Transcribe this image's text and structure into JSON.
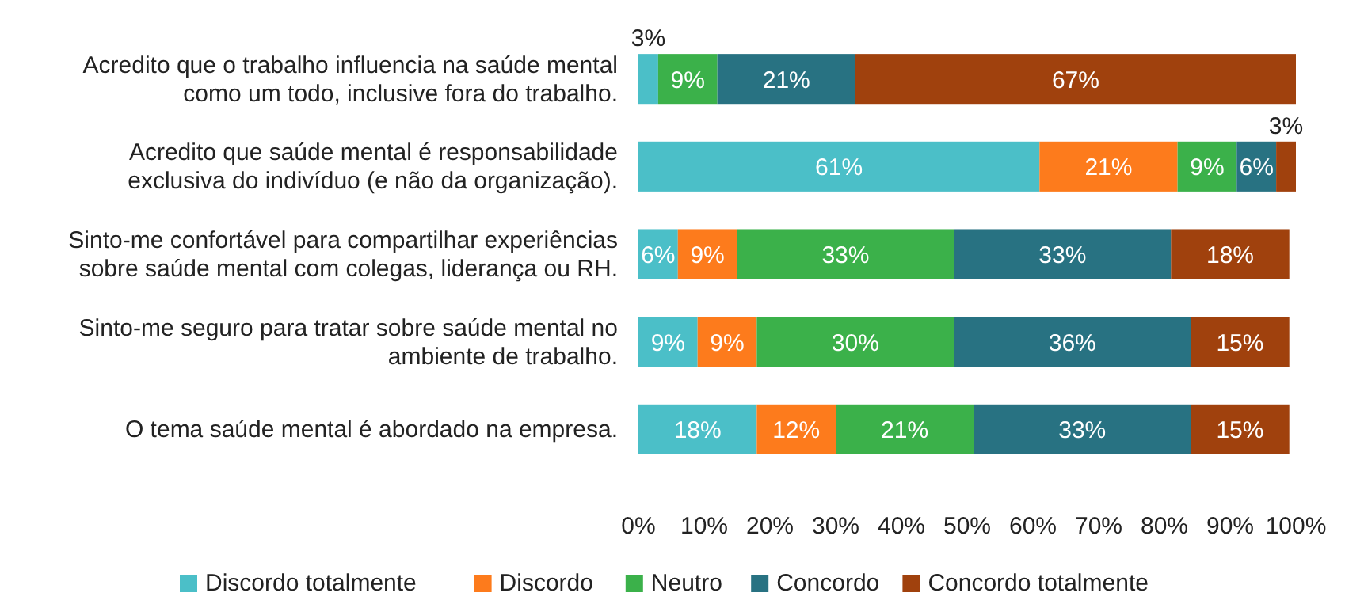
{
  "chart_data": {
    "type": "bar",
    "orientation": "horizontal",
    "stacked": true,
    "legend": "bottom",
    "categories": [
      "Acredito que o trabalho influencia na saúde mental como um todo, inclusive fora do trabalho.",
      "Acredito que saúde mental é responsabilidade exclusiva do indivíduo (e não da organização).",
      "Sinto-me confortável para compartilhar experiências sobre saúde mental com colegas, liderança ou RH.",
      "Sinto-me seguro para tratar sobre saúde mental no ambiente de trabalho.",
      "O tema saúde mental é abordado na empresa."
    ],
    "xlim": [
      0,
      100
    ],
    "xticks": [
      {
        "value": 0,
        "label": "0%"
      },
      {
        "value": 10,
        "label": "10%"
      },
      {
        "value": 20,
        "label": "20%"
      },
      {
        "value": 30,
        "label": "30%"
      },
      {
        "value": 40,
        "label": "40%"
      },
      {
        "value": 50,
        "label": "50%"
      },
      {
        "value": 60,
        "label": "60%"
      },
      {
        "value": 70,
        "label": "70%"
      },
      {
        "value": 80,
        "label": "80%"
      },
      {
        "value": 90,
        "label": "90%"
      },
      {
        "value": 100,
        "label": "100%"
      }
    ],
    "series": [
      {
        "name": "Discordo totalmente",
        "color": "#4bbfc8",
        "values": [
          3,
          61,
          6,
          9,
          18
        ],
        "value_labels": [
          "3%",
          "61%",
          "6%",
          "9%",
          "18%"
        ]
      },
      {
        "name": "Discordo",
        "color": "#fd7b1c",
        "values": [
          0,
          21,
          9,
          9,
          12
        ],
        "value_labels": [
          null,
          "21%",
          "9%",
          "9%",
          "12%"
        ]
      },
      {
        "name": "Neutro",
        "color": "#3bb14a",
        "values": [
          9,
          9,
          33,
          30,
          21
        ],
        "value_labels": [
          "9%",
          "9%",
          "33%",
          "30%",
          "21%"
        ]
      },
      {
        "name": "Concordo",
        "color": "#287282",
        "values": [
          21,
          6,
          33,
          36,
          33
        ],
        "value_labels": [
          "21%",
          "6%",
          "33%",
          "36%",
          "33%"
        ]
      },
      {
        "name": "Concordo totalmente",
        "color": "#a0410d",
        "values": [
          67,
          3,
          18,
          15,
          15
        ],
        "value_labels": [
          "67%",
          "3%",
          "18%",
          "15%",
          "15%"
        ]
      }
    ]
  }
}
